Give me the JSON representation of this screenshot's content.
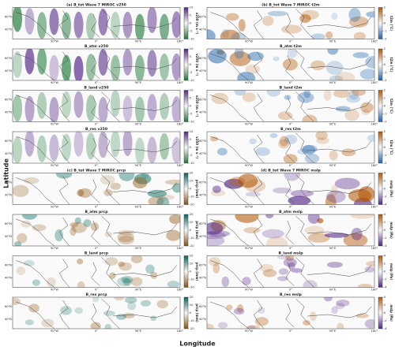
{
  "axis_labels": {
    "y": "Latitude",
    "x": "Longitude"
  },
  "lat_ticks": [
    "60°N",
    "40°N"
  ],
  "lon_ticks": [
    "90°W",
    "0°",
    "90°E",
    "180°"
  ],
  "panels": [
    {
      "title": "(a) B_tot Wave 7 MIROC v250",
      "colorbar": {
        "label": "v250 (m s⁻¹)",
        "ticks": [
          10,
          5,
          0,
          -5,
          -10
        ],
        "colors": [
          "#542788",
          "#f7f7f7",
          "#1b7837"
        ]
      }
    },
    {
      "title": "(b) B_tot Wave 7 MIROC t2m",
      "colorbar": {
        "label": "t2m (°C)",
        "ticks": [
          2,
          1,
          0,
          -1,
          -2
        ],
        "colors": [
          "#b35806",
          "#f7f7f7",
          "#2166ac"
        ]
      }
    },
    {
      "title": "B_atm v250",
      "colorbar": {
        "label": "v250 (m s⁻¹)",
        "ticks": [
          10,
          5,
          0,
          -5,
          -10
        ],
        "colors": [
          "#542788",
          "#f7f7f7",
          "#1b7837"
        ]
      }
    },
    {
      "title": "B_atm t2m",
      "colorbar": {
        "label": "t2m (°C)",
        "ticks": [
          2,
          1,
          0,
          -1,
          -2
        ],
        "colors": [
          "#b35806",
          "#f7f7f7",
          "#2166ac"
        ]
      }
    },
    {
      "title": "B_land v250",
      "colorbar": {
        "label": "v250 (m s⁻¹)",
        "ticks": [
          10,
          5,
          0,
          -5,
          -10
        ],
        "colors": [
          "#542788",
          "#f7f7f7",
          "#1b7837"
        ]
      }
    },
    {
      "title": "B_land t2m",
      "colorbar": {
        "label": "t2m (°C)",
        "ticks": [
          2,
          1,
          0,
          -1,
          -2
        ],
        "colors": [
          "#b35806",
          "#f7f7f7",
          "#2166ac"
        ]
      }
    },
    {
      "title": "B_res v250",
      "colorbar": {
        "label": "v250 (m s⁻¹)",
        "ticks": [
          10,
          5,
          0,
          -5,
          -10
        ],
        "colors": [
          "#542788",
          "#f7f7f7",
          "#1b7837"
        ]
      }
    },
    {
      "title": "B_res t2m",
      "colorbar": {
        "label": "t2m (°C)",
        "ticks": [
          2,
          1,
          0,
          -1,
          -2
        ],
        "colors": [
          "#b35806",
          "#f7f7f7",
          "#2166ac"
        ]
      }
    },
    {
      "title": "(c) B_tot Wave 7 MIROC prcp",
      "colorbar": {
        "label": "prcp (mm)",
        "ticks": [
          20,
          10,
          0,
          -10,
          -20
        ],
        "colors": [
          "#01665e",
          "#f7f7f7",
          "#8c510a"
        ]
      }
    },
    {
      "title": "(d) B_tot Wave 7 MIROC mslp",
      "colorbar": {
        "label": "mslp (Pa)",
        "ticks": [
          4,
          2,
          0,
          -2,
          -4
        ],
        "colors": [
          "#b35806",
          "#f7f7f7",
          "#542788"
        ]
      }
    },
    {
      "title": "B_atm prcp",
      "colorbar": {
        "label": "prcp (mm)",
        "ticks": [
          20,
          10,
          0,
          -10,
          -20
        ],
        "colors": [
          "#01665e",
          "#f7f7f7",
          "#8c510a"
        ]
      }
    },
    {
      "title": "B_atm mslp",
      "colorbar": {
        "label": "mslp (Pa)",
        "ticks": [
          4,
          2,
          0,
          -2,
          -4
        ],
        "colors": [
          "#b35806",
          "#f7f7f7",
          "#542788"
        ]
      }
    },
    {
      "title": "B_land prcp",
      "colorbar": {
        "label": "prcp (mm)",
        "ticks": [
          20,
          10,
          0,
          -10,
          -20
        ],
        "colors": [
          "#01665e",
          "#f7f7f7",
          "#8c510a"
        ]
      }
    },
    {
      "title": "B_land mslp",
      "colorbar": {
        "label": "mslp (Pa)",
        "ticks": [
          4,
          2,
          0,
          -2,
          -4
        ],
        "colors": [
          "#b35806",
          "#f7f7f7",
          "#542788"
        ]
      }
    },
    {
      "title": "B_res prcp",
      "colorbar": {
        "label": "prcp (mm)",
        "ticks": [
          20,
          10,
          0,
          -10,
          -20
        ],
        "colors": [
          "#01665e",
          "#f7f7f7",
          "#8c510a"
        ]
      }
    },
    {
      "title": "B_res mslp",
      "colorbar": {
        "label": "mslp (Pa)",
        "ticks": [
          4,
          2,
          0,
          -2,
          -4
        ],
        "colors": [
          "#b35806",
          "#f7f7f7",
          "#542788"
        ]
      }
    }
  ]
}
